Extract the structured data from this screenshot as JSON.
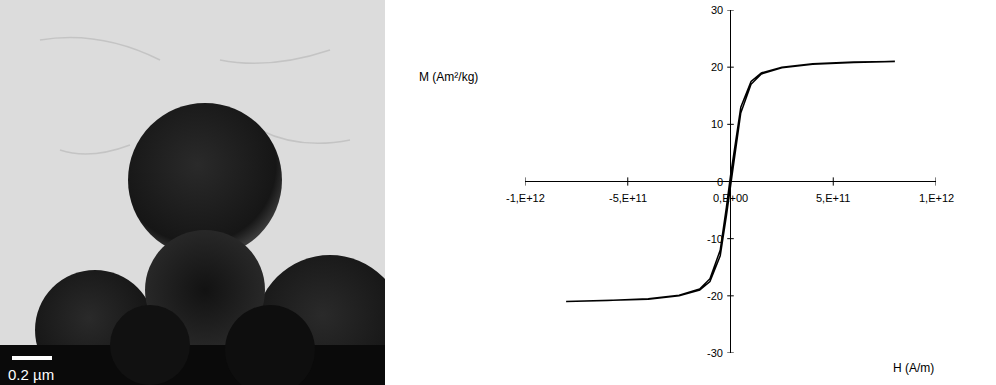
{
  "image": {
    "scale_bar": "0.2 µm"
  },
  "chart_data": {
    "type": "line",
    "x_label": "H (A/m)",
    "y_label": "M (Am²/kg)",
    "x": [
      800000000000,
      600000000000,
      400000000000,
      250000000000,
      150000000000,
      100000000000,
      50000000000,
      20000000000,
      0,
      -20000000000,
      -50000000000,
      -100000000000,
      -150000000000,
      -250000000000,
      -400000000000,
      -600000000000,
      -800000000000,
      -600000000000,
      -400000000000,
      -250000000000,
      -150000000000,
      -100000000000,
      -50000000000,
      -20000000000,
      0,
      20000000000,
      50000000000,
      100000000000,
      150000000000,
      250000000000,
      400000000000,
      600000000000,
      800000000000
    ],
    "values": [
      21,
      20.9,
      20.6,
      20.0,
      19.0,
      17.5,
      13.0,
      6.0,
      1.0,
      -4.5,
      -12.0,
      -17.0,
      -18.8,
      -19.9,
      -20.5,
      -20.8,
      -21,
      -20.9,
      -20.6,
      -20.0,
      -19.0,
      -17.5,
      -13.0,
      -6.0,
      -1.0,
      4.5,
      12.0,
      17.0,
      18.8,
      19.9,
      20.5,
      20.8,
      21
    ],
    "color": "#000000",
    "xlim": [
      -1000000000000,
      1000000000000
    ],
    "xticks": [
      {
        "value": -1000000000000,
        "label": "-1,E+12"
      },
      {
        "value": -500000000000,
        "label": "-5,E+11"
      },
      {
        "value": 0,
        "label": "0,E+00"
      },
      {
        "value": 500000000000,
        "label": "5,E+11"
      },
      {
        "value": 1000000000000,
        "label": "1,E+12"
      }
    ],
    "ylim": [
      -30,
      30
    ],
    "yticks": [
      -30,
      -20,
      -10,
      0,
      10,
      20,
      30
    ],
    "grid": false
  }
}
